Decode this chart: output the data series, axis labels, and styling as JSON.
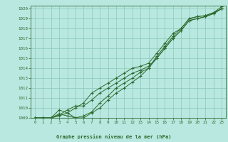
{
  "title": "Graphe pression niveau de la mer (hPa)",
  "x": [
    0,
    1,
    2,
    3,
    4,
    5,
    6,
    7,
    8,
    9,
    10,
    11,
    12,
    13,
    14,
    15,
    16,
    17,
    18,
    19,
    20,
    21,
    22,
    23
  ],
  "series": [
    [
      1009.0,
      1009.0,
      1009.0,
      1009.4,
      1009.2,
      1009.0,
      1009.2,
      1009.6,
      1010.5,
      1011.2,
      1012.0,
      1012.5,
      1013.0,
      1013.6,
      1014.0,
      1015.2,
      1016.2,
      1017.2,
      1018.0,
      1019.0,
      1019.2,
      1019.3,
      1019.6,
      1020.2
    ],
    [
      1009.0,
      1009.0,
      1009.0,
      1009.8,
      1009.5,
      1009.0,
      1009.0,
      1009.5,
      1010.0,
      1010.8,
      1011.5,
      1012.0,
      1012.6,
      1013.2,
      1014.0,
      1015.0,
      1016.0,
      1017.0,
      1017.8,
      1018.8,
      1019.0,
      1019.2,
      1019.5,
      1020.0
    ],
    [
      1009.0,
      1009.0,
      1009.0,
      1009.3,
      1009.8,
      1010.2,
      1010.2,
      1010.8,
      1011.5,
      1012.0,
      1012.5,
      1013.0,
      1013.5,
      1013.8,
      1014.2,
      1015.0,
      1016.0,
      1017.0,
      1017.8,
      1018.8,
      1019.0,
      1019.2,
      1019.5,
      1020.0
    ],
    [
      1009.0,
      1009.0,
      1009.0,
      1009.2,
      1009.5,
      1010.0,
      1010.5,
      1011.5,
      1012.0,
      1012.5,
      1013.0,
      1013.5,
      1014.0,
      1014.2,
      1014.5,
      1015.5,
      1016.5,
      1017.5,
      1018.0,
      1019.0,
      1019.2,
      1019.3,
      1019.6,
      1020.0
    ]
  ],
  "ylim_min": 1009.0,
  "ylim_max": 1020.3,
  "yticks": [
    1009,
    1010,
    1011,
    1012,
    1013,
    1014,
    1015,
    1016,
    1017,
    1018,
    1019,
    1020
  ],
  "line_color": "#2d6a2d",
  "bg_color": "#b8e8e0",
  "plot_bg_color": "#b8e8e0",
  "grid_color": "#8cc8b8",
  "title_color": "#2d6a2d",
  "marker": "+"
}
